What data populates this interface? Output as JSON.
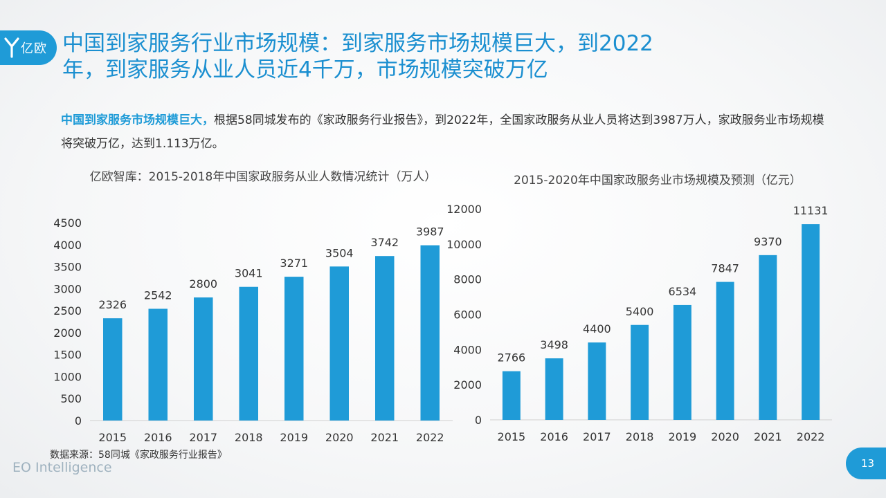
{
  "brand": {
    "logo_text": "亿欧",
    "footer": "EO Intelligence"
  },
  "page_number": "13",
  "title": "中国到家服务行业市场规模：到家服务市场规模巨大，到2022年，到家服务从业人员近4千万，市场规模突破万亿",
  "summary": {
    "lead": "中国到家服务市场规模巨大，",
    "body": "根据58同城发布的《家政服务行业报告》，到2022年，全国家政服务从业人员将达到3987万人，家政服务业市场规模将突破万亿，达到1.113万亿。"
  },
  "source": "数据来源：58同城《家政服务行业报告》",
  "colors": {
    "accent": "#1f9bd7",
    "bar": "#1f9bd7"
  },
  "chart_data": [
    {
      "type": "bar",
      "title": "亿欧智库：2015-2018年中国家政服务从业人数情况统计（万人）",
      "categories": [
        "2015",
        "2016",
        "2017",
        "2018",
        "2019",
        "2020",
        "2021",
        "2022"
      ],
      "values": [
        2326,
        2542,
        2800,
        3041,
        3271,
        3504,
        3742,
        3987
      ],
      "ylim": [
        0,
        4500
      ],
      "yticks": [
        0,
        500,
        1000,
        1500,
        2000,
        2500,
        3000,
        3500,
        4000,
        4500
      ],
      "grid": false,
      "data_labels": true
    },
    {
      "type": "bar",
      "title": "2015-2020年中国家政服务业市场规模及预测（亿元）",
      "categories": [
        "2015",
        "2016",
        "2017",
        "2018",
        "2019",
        "2020",
        "2021",
        "2022"
      ],
      "values": [
        2766,
        3498,
        4400,
        5400,
        6534,
        7847,
        9370,
        11131
      ],
      "ylim": [
        0,
        12000
      ],
      "yticks": [
        0,
        2000,
        4000,
        6000,
        8000,
        10000,
        12000
      ],
      "grid": false,
      "data_labels": true
    }
  ]
}
